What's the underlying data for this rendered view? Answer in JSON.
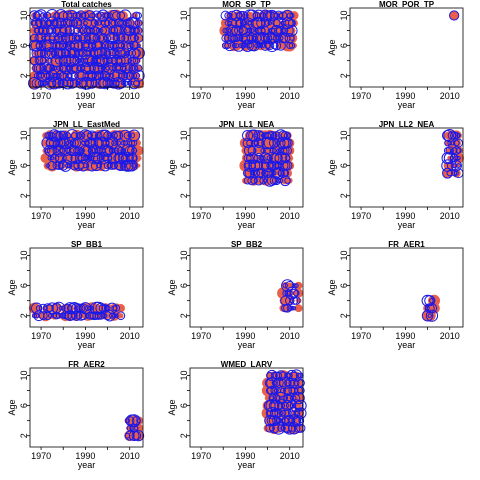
{
  "figure": {
    "xlabel": "year",
    "ylabel": "Age",
    "colors": {
      "filled": "#E8604A",
      "open": "#1A1AE8",
      "axis": "#000000"
    }
  },
  "chart_data": [
    {
      "type": "scatter",
      "title": "Total catches",
      "xlabel": "year",
      "ylabel": "Age",
      "xlim": [
        1965,
        2016
      ],
      "ylim": [
        0.5,
        11
      ],
      "xticks": [
        1970,
        1990,
        2010
      ],
      "yticks": [
        2,
        6,
        10
      ],
      "series": [
        {
          "marker": "filled",
          "years": [
            1967,
            2014
          ],
          "ages": [
            1,
            10
          ]
        },
        {
          "marker": "open",
          "years": [
            1967,
            2014
          ],
          "ages": [
            1,
            10
          ]
        }
      ]
    },
    {
      "type": "scatter",
      "title": "MOR_SP_TP",
      "xlabel": "year",
      "ylabel": "Age",
      "xlim": [
        1965,
        2016
      ],
      "ylim": [
        0.5,
        11
      ],
      "xticks": [
        1970,
        1990,
        2010
      ],
      "yticks": [
        2,
        6,
        10
      ],
      "series": [
        {
          "marker": "filled",
          "years": [
            1981,
            2012
          ],
          "ages": [
            6,
            10
          ]
        },
        {
          "marker": "open",
          "years": [
            1981,
            2011
          ],
          "ages": [
            6,
            10
          ]
        }
      ]
    },
    {
      "type": "scatter",
      "title": "MOR_POR_TP",
      "xlabel": "year",
      "ylabel": "Age",
      "xlim": [
        1965,
        2016
      ],
      "ylim": [
        0.5,
        11
      ],
      "xticks": [
        1970,
        1990,
        2010
      ],
      "yticks": [
        2,
        6,
        10
      ],
      "series": [
        {
          "marker": "filled",
          "years": [
            2012,
            2012
          ],
          "ages": [
            10,
            10
          ]
        },
        {
          "marker": "open",
          "years": [
            2012,
            2012
          ],
          "ages": [
            10,
            10
          ]
        }
      ]
    },
    {
      "type": "scatter",
      "title": "JPN_LL_EastMed",
      "xlabel": "year",
      "ylabel": "Age",
      "xlim": [
        1965,
        2016
      ],
      "ylim": [
        0.5,
        11
      ],
      "xticks": [
        1970,
        1990,
        2010
      ],
      "yticks": [
        2,
        6,
        10
      ],
      "series": [
        {
          "marker": "filled",
          "years": [
            1972,
            2014
          ],
          "ages": [
            6,
            10
          ]
        },
        {
          "marker": "open",
          "years": [
            1973,
            2012
          ],
          "ages": [
            6,
            10
          ]
        }
      ]
    },
    {
      "type": "scatter",
      "title": "JPN_LL1_NEA",
      "xlabel": "year",
      "ylabel": "Age",
      "xlim": [
        1965,
        2016
      ],
      "ylim": [
        0.5,
        11
      ],
      "xticks": [
        1970,
        1990,
        2010
      ],
      "yticks": [
        2,
        6,
        10
      ],
      "series": [
        {
          "marker": "filled",
          "years": [
            1990,
            2010
          ],
          "ages": [
            4,
            10
          ]
        },
        {
          "marker": "open",
          "years": [
            1991,
            2009
          ],
          "ages": [
            4,
            10
          ]
        }
      ]
    },
    {
      "type": "scatter",
      "title": "JPN_LL2_NEA",
      "xlabel": "year",
      "ylabel": "Age",
      "xlim": [
        1965,
        2016
      ],
      "ylim": [
        0.5,
        11
      ],
      "xticks": [
        1970,
        1990,
        2010
      ],
      "yticks": [
        2,
        6,
        10
      ],
      "series": [
        {
          "marker": "filled",
          "years": [
            2009,
            2014
          ],
          "ages": [
            5,
            10
          ]
        },
        {
          "marker": "open",
          "years": [
            2009,
            2014
          ],
          "ages": [
            5,
            10
          ]
        }
      ]
    },
    {
      "type": "scatter",
      "title": "SP_BB1",
      "xlabel": "year",
      "ylabel": "Age",
      "xlim": [
        1965,
        2016
      ],
      "ylim": [
        0.5,
        11
      ],
      "xticks": [
        1970,
        1990,
        2010
      ],
      "yticks": [
        2,
        6,
        10
      ],
      "series": [
        {
          "marker": "filled",
          "years": [
            1967,
            2006
          ],
          "ages": [
            2,
            3
          ]
        },
        {
          "marker": "open",
          "years": [
            1967,
            2006
          ],
          "ages": [
            2,
            3
          ]
        }
      ]
    },
    {
      "type": "scatter",
      "title": "SP_BB2",
      "xlabel": "year",
      "ylabel": "Age",
      "xlim": [
        1965,
        2016
      ],
      "ylim": [
        0.5,
        11
      ],
      "xticks": [
        1970,
        1990,
        2010
      ],
      "yticks": [
        2,
        6,
        10
      ],
      "series": [
        {
          "marker": "filled",
          "years": [
            2007,
            2014
          ],
          "ages": [
            3,
            6
          ]
        },
        {
          "marker": "open",
          "years": [
            2008,
            2013
          ],
          "ages": [
            3,
            6
          ]
        }
      ]
    },
    {
      "type": "scatter",
      "title": "FR_AER1",
      "xlabel": "year",
      "ylabel": "Age",
      "xlim": [
        1965,
        2016
      ],
      "ylim": [
        0.5,
        11
      ],
      "xticks": [
        1970,
        1990,
        2010
      ],
      "yticks": [
        2,
        6,
        10
      ],
      "series": [
        {
          "marker": "filled",
          "years": [
            2000,
            2003
          ],
          "ages": [
            2,
            4
          ]
        },
        {
          "marker": "open",
          "years": [
            2000,
            2002
          ],
          "ages": [
            2,
            4
          ]
        }
      ]
    },
    {
      "type": "scatter",
      "title": "FR_AER2",
      "xlabel": "year",
      "ylabel": "Age",
      "xlim": [
        1965,
        2016
      ],
      "ylim": [
        0.5,
        11
      ],
      "xticks": [
        1970,
        1990,
        2010
      ],
      "yticks": [
        2,
        6,
        10
      ],
      "series": [
        {
          "marker": "filled",
          "years": [
            2009,
            2014
          ],
          "ages": [
            2,
            4
          ]
        },
        {
          "marker": "open",
          "years": [
            2009,
            2014
          ],
          "ages": [
            2,
            4
          ]
        }
      ]
    },
    {
      "type": "scatter",
      "title": "WMED_LARV",
      "xlabel": "year",
      "ylabel": "Age",
      "xlim": [
        1965,
        2016
      ],
      "ylim": [
        0.5,
        11
      ],
      "xticks": [
        1970,
        1990,
        2010
      ],
      "yticks": [
        2,
        6,
        10
      ],
      "series": [
        {
          "marker": "filled",
          "years": [
            2000,
            2014
          ],
          "ages": [
            3,
            10
          ]
        },
        {
          "marker": "open",
          "years": [
            2001,
            2015
          ],
          "ages": [
            3,
            10
          ]
        }
      ]
    }
  ]
}
